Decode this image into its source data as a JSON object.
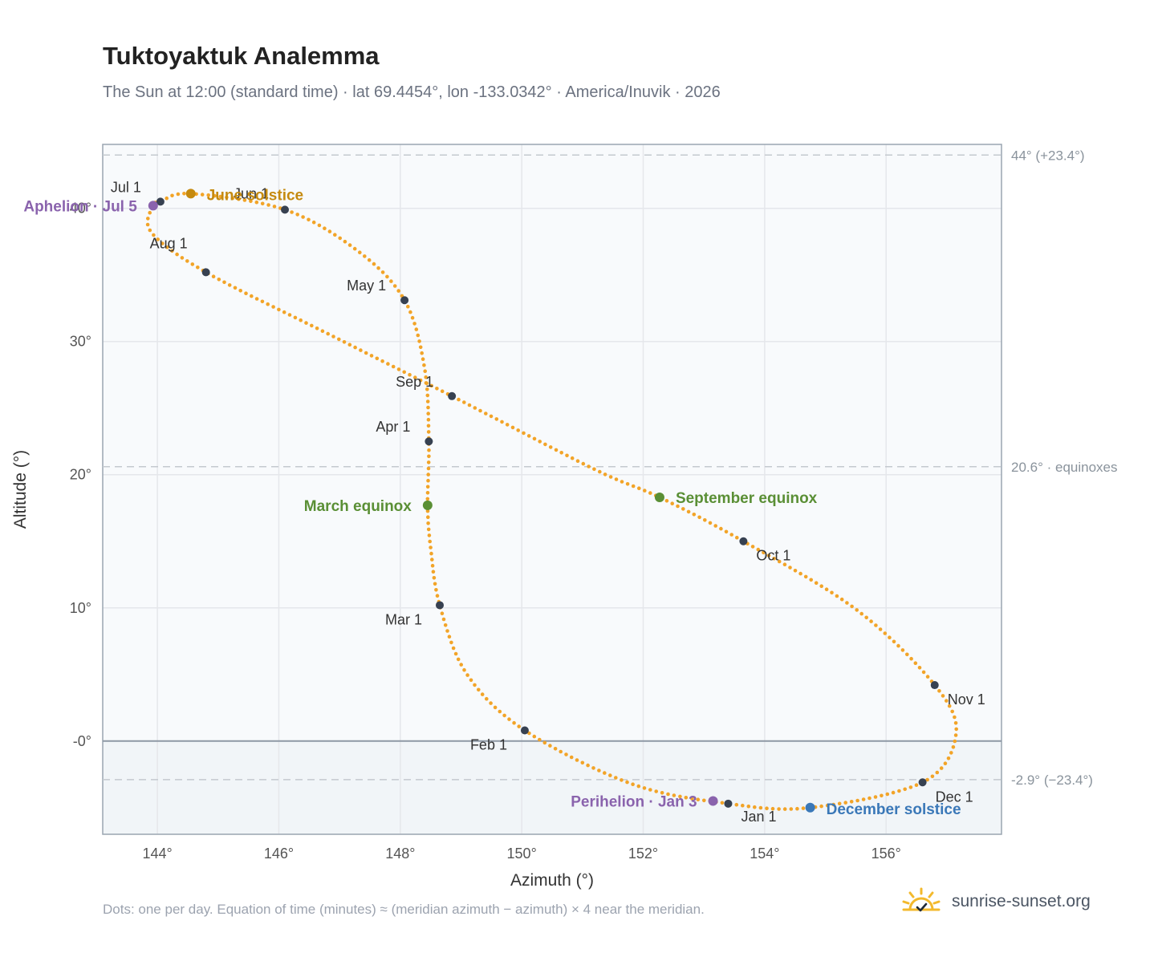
{
  "header": {
    "title": "Tuktoyaktuk Analemma",
    "subtitle": "The Sun at 12:00 (standard time) · lat 69.4454°, lon -133.0342° · America/Inuvik · 2026"
  },
  "footer": {
    "note": "Dots: one per day. Equation of time (minutes) ≈ (meridian azimuth − azimuth) × 4 near the meridian.",
    "brand": "sunrise-sunset.org",
    "brand_icon": "sun-icon"
  },
  "colors": {
    "path": "#f2a428",
    "month_marker": "#374151",
    "solstice_june": "#c58a0f",
    "solstice_december": "#3a78b8",
    "equinox": "#5a8f35",
    "apsis": "#8a63ad",
    "plot_bg": "#f8fafc",
    "below_horizon_bg": "#f1f5f8",
    "grid": "#e5e7eb",
    "axis_frame": "#9aa5b1",
    "reference_line": "#c4c9cf"
  },
  "chart_data": {
    "type": "scatter",
    "title": "Tuktoyaktuk Analemma",
    "xlabel": "Azimuth (°)",
    "ylabel": "Altitude (°)",
    "xlim": [
      143.1,
      157.9
    ],
    "ylim": [
      -7,
      44.8
    ],
    "x_ticks": [
      144,
      146,
      148,
      150,
      152,
      154,
      156
    ],
    "x_tick_labels": [
      "144°",
      "146°",
      "148°",
      "150°",
      "152°",
      "154°",
      "156°"
    ],
    "y_ticks": [
      0,
      10,
      20,
      30,
      40
    ],
    "y_tick_labels": [
      "-0°",
      "10°",
      "20°",
      "30°",
      "40°"
    ],
    "grid": true,
    "horizon_altitude": 0,
    "reference_lines": [
      {
        "y": 44,
        "label": "44° (+23.4°)"
      },
      {
        "y": 20.6,
        "label": "20.6° · equinoxes"
      },
      {
        "y": -2.9,
        "label": "-2.9° (−23.4°)"
      }
    ],
    "month_markers": [
      {
        "label": "Jan 1",
        "x": 153.4,
        "y": -4.7
      },
      {
        "label": "Feb 1",
        "x": 150.05,
        "y": 0.8
      },
      {
        "label": "Mar 1",
        "x": 148.65,
        "y": 10.2
      },
      {
        "label": "Apr 1",
        "x": 148.47,
        "y": 22.5
      },
      {
        "label": "May 1",
        "x": 148.07,
        "y": 33.1
      },
      {
        "label": "Jun 1",
        "x": 146.1,
        "y": 39.9
      },
      {
        "label": "Jul 1",
        "x": 144.05,
        "y": 40.5
      },
      {
        "label": "Aug 1",
        "x": 144.8,
        "y": 35.2
      },
      {
        "label": "Sep 1",
        "x": 148.85,
        "y": 25.9
      },
      {
        "label": "Oct 1",
        "x": 153.65,
        "y": 15.0
      },
      {
        "label": "Nov 1",
        "x": 156.8,
        "y": 4.2
      },
      {
        "label": "Dec 1",
        "x": 156.6,
        "y": -3.1
      }
    ],
    "events": [
      {
        "label": "June solstice",
        "x": 144.55,
        "y": 41.1,
        "kind": "solstice_june"
      },
      {
        "label": "December solstice",
        "x": 154.75,
        "y": -5.0,
        "kind": "solstice_december"
      },
      {
        "label": "March equinox",
        "x": 148.45,
        "y": 17.7,
        "kind": "equinox"
      },
      {
        "label": "September equinox",
        "x": 152.27,
        "y": 18.3,
        "kind": "equinox"
      },
      {
        "label": "Aphelion · Jul 5",
        "x": 143.93,
        "y": 40.2,
        "kind": "apsis"
      },
      {
        "label": "Perihelion · Jan 3",
        "x": 153.15,
        "y": -4.5,
        "kind": "apsis"
      }
    ],
    "daily_path_anchor_points": [
      {
        "x": 153.4,
        "y": -4.7
      },
      {
        "x": 151.8,
        "y": -3.2
      },
      {
        "x": 150.05,
        "y": 0.8
      },
      {
        "x": 149.1,
        "y": 5.0
      },
      {
        "x": 148.65,
        "y": 10.2
      },
      {
        "x": 148.5,
        "y": 14.5
      },
      {
        "x": 148.45,
        "y": 17.7
      },
      {
        "x": 148.47,
        "y": 22.5
      },
      {
        "x": 148.4,
        "y": 28.0
      },
      {
        "x": 148.07,
        "y": 33.1
      },
      {
        "x": 147.3,
        "y": 36.8
      },
      {
        "x": 146.1,
        "y": 39.9
      },
      {
        "x": 144.55,
        "y": 41.1
      },
      {
        "x": 144.05,
        "y": 40.5
      },
      {
        "x": 143.93,
        "y": 40.2
      },
      {
        "x": 143.9,
        "y": 38.2
      },
      {
        "x": 144.8,
        "y": 35.2
      },
      {
        "x": 146.8,
        "y": 30.6
      },
      {
        "x": 148.85,
        "y": 25.9
      },
      {
        "x": 151.2,
        "y": 20.4
      },
      {
        "x": 152.27,
        "y": 18.3
      },
      {
        "x": 153.65,
        "y": 15.0
      },
      {
        "x": 155.5,
        "y": 9.9
      },
      {
        "x": 156.8,
        "y": 4.2
      },
      {
        "x": 157.15,
        "y": 0.5
      },
      {
        "x": 156.6,
        "y": -3.1
      },
      {
        "x": 154.75,
        "y": -5.0
      },
      {
        "x": 153.4,
        "y": -4.7
      }
    ]
  }
}
